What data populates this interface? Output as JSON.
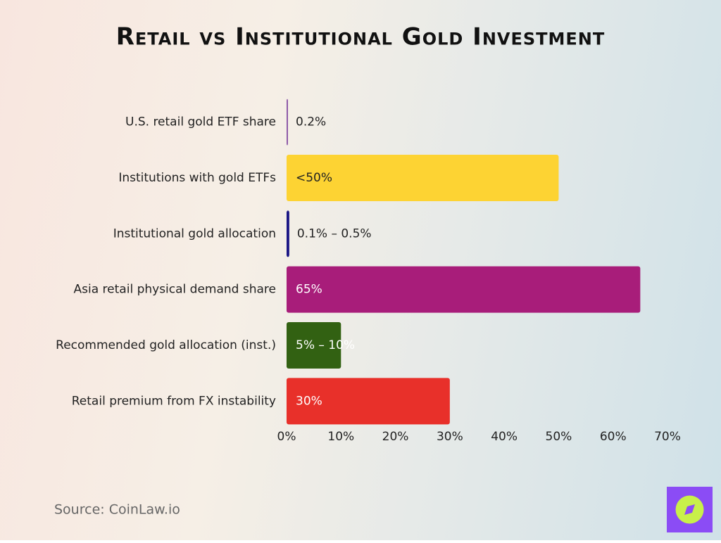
{
  "chart_data": {
    "type": "bar",
    "orientation": "horizontal",
    "title": "Retail vs Institutional Gold Investment",
    "categories": [
      "U.S. retail gold ETF share",
      "Institutions with gold ETFs",
      "Institutional gold allocation",
      "Asia retail physical demand share",
      "Recommended gold allocation (inst.)",
      "Retail premium from FX instability"
    ],
    "values": [
      0.2,
      50,
      0.5,
      65,
      10,
      30
    ],
    "value_labels": [
      "0.2%",
      "<50%",
      "0.1% – 0.5%",
      "65%",
      "5% – 10%",
      "30%"
    ],
    "colors": [
      "#8e5aa8",
      "#fdd333",
      "#1b1685",
      "#a81d7a",
      "#326112",
      "#e8302a"
    ],
    "xlim": [
      0,
      70
    ],
    "xticks": [
      {
        "value": 0,
        "label": "0%"
      },
      {
        "value": 10,
        "label": "10%"
      },
      {
        "value": 20,
        "label": "20%"
      },
      {
        "value": 30,
        "label": "30%"
      },
      {
        "value": 40,
        "label": "40%"
      },
      {
        "value": 50,
        "label": "50%"
      },
      {
        "value": 60,
        "label": "60%"
      },
      {
        "value": 70,
        "label": "70%"
      }
    ],
    "grid": false,
    "source": "Source: CoinLaw.io"
  }
}
